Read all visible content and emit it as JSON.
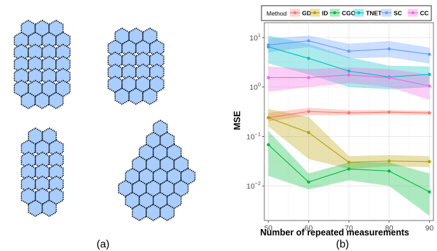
{
  "panels": {
    "a_label": "(a)",
    "b_label": "(b)"
  },
  "hex_figures": {
    "fill": "#a9cdfc",
    "lattices": [
      {
        "name": "top-left",
        "row_counts": [
          3,
          4,
          4,
          4,
          4,
          4,
          3
        ]
      },
      {
        "name": "top-right",
        "row_counts": [
          3,
          4,
          4,
          4,
          4,
          3
        ]
      },
      {
        "name": "bottom-left",
        "row_counts": [
          2,
          3,
          3,
          3,
          3,
          3,
          2
        ]
      },
      {
        "name": "bottom-right",
        "row_counts": [
          1,
          2,
          3,
          4,
          5,
          5,
          4,
          3
        ]
      }
    ]
  },
  "chart_data": {
    "type": "line",
    "xlabel": "Number of repeated measurements",
    "ylabel": "MSE",
    "y_scale": "log10",
    "x": [
      50,
      60,
      70,
      80,
      90
    ],
    "xlim": [
      49,
      91
    ],
    "ylim": [
      0.002,
      20
    ],
    "x_ticks": [
      "50",
      "60",
      "70",
      "80",
      "90"
    ],
    "y_ticks": [
      {
        "value": 10,
        "base": "10",
        "exp": "1"
      },
      {
        "value": 1,
        "base": "10",
        "exp": "0"
      },
      {
        "value": 0.1,
        "base": "10",
        "exp": "−1"
      },
      {
        "value": 0.01,
        "base": "10",
        "exp": "−2"
      }
    ],
    "grid": true,
    "legend": {
      "title": "Method",
      "position": "top"
    },
    "series": [
      {
        "name": "GD",
        "color": "#f8766d",
        "values": [
          0.24,
          0.32,
          0.3,
          0.31,
          0.3
        ],
        "lower": [
          0.2,
          0.27,
          0.27,
          0.28,
          0.27
        ],
        "upper": [
          0.3,
          0.38,
          0.34,
          0.34,
          0.33
        ]
      },
      {
        "name": "ID",
        "color": "#b79f00",
        "values": [
          0.24,
          0.12,
          0.03,
          0.032,
          0.031
        ],
        "lower": [
          0.16,
          0.035,
          0.022,
          0.025,
          0.024
        ],
        "upper": [
          0.36,
          0.25,
          0.04,
          0.042,
          0.04
        ]
      },
      {
        "name": "CGC",
        "color": "#00ba38",
        "values": [
          0.068,
          0.012,
          0.022,
          0.02,
          0.0076
        ],
        "lower": [
          0.016,
          0.0085,
          0.013,
          0.01,
          0.0025
        ],
        "upper": [
          0.13,
          0.018,
          0.03,
          0.03,
          0.018
        ]
      },
      {
        "name": "TNET",
        "color": "#00bfc4",
        "values": [
          6.5,
          3.8,
          2.1,
          1.6,
          1.8
        ],
        "lower": [
          3.0,
          1.8,
          1.0,
          0.9,
          1.0
        ],
        "upper": [
          11.0,
          7.5,
          4.0,
          2.7,
          2.6
        ]
      },
      {
        "name": "SC",
        "color": "#619cff",
        "values": [
          7.1,
          8.6,
          5.3,
          5.9,
          4.6
        ],
        "lower": [
          5.0,
          6.5,
          3.8,
          4.0,
          3.0
        ],
        "upper": [
          9.5,
          11.0,
          7.5,
          8.5,
          6.3
        ]
      },
      {
        "name": "CC",
        "color": "#f564e3",
        "values": [
          1.55,
          1.55,
          1.75,
          1.55,
          1.05
        ],
        "lower": [
          0.8,
          1.0,
          1.2,
          1.0,
          0.55
        ],
        "upper": [
          2.6,
          2.3,
          2.5,
          2.3,
          1.8
        ]
      }
    ]
  }
}
